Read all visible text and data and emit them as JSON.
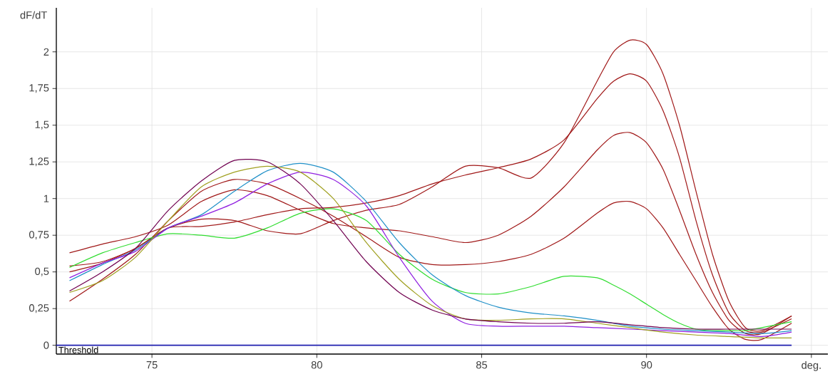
{
  "chart_data": {
    "type": "line",
    "xlabel": "deg.",
    "ylabel": "dF/dT",
    "xlim": [
      72.1,
      95.5
    ],
    "ylim": [
      -0.06,
      2.3
    ],
    "xticks": [
      75,
      80,
      85,
      90,
      {
        "value": 95,
        "label": null
      }
    ],
    "yticks": [
      0,
      {
        "value": 0.25,
        "label": "0,25"
      },
      {
        "value": 0.5,
        "label": "0,5"
      },
      {
        "value": 0.75,
        "label": "0,75"
      },
      1,
      {
        "value": 1.25,
        "label": "1,25"
      },
      {
        "value": 1.5,
        "label": "1,5"
      },
      {
        "value": 1.75,
        "label": "1,75"
      },
      2
    ],
    "grid": true,
    "legend": false,
    "marker": "none",
    "line_style": "solid",
    "ref_lines": [
      {
        "axis": "y",
        "value": 0,
        "label": "Threshold",
        "color": "#2020b0"
      }
    ],
    "series": [
      {
        "color": "#a01818",
        "x": [
          72.5,
          73.5,
          74.5,
          75.5,
          76.5,
          77.5,
          78.5,
          79.5,
          80.5,
          81.5,
          82.5,
          83.5,
          84.5,
          85.5,
          86.5,
          87.5,
          88.5,
          89,
          89.5,
          90,
          90.5,
          91,
          91.5,
          92,
          92.5,
          93,
          93.5,
          94.4
        ],
        "values": [
          0.5,
          0.56,
          0.66,
          0.8,
          0.86,
          0.85,
          0.78,
          0.76,
          0.85,
          0.92,
          0.96,
          1.08,
          1.22,
          1.21,
          1.14,
          1.38,
          1.8,
          2.0,
          2.08,
          2.05,
          1.85,
          1.5,
          1.05,
          0.62,
          0.3,
          0.12,
          0.1,
          0.2
        ]
      },
      {
        "color": "#a01818",
        "x": [
          72.5,
          73.5,
          74.5,
          75.5,
          76.5,
          77.5,
          78.5,
          79.5,
          80.5,
          81.5,
          82.5,
          83.5,
          84.5,
          85.5,
          86.5,
          87.5,
          88.5,
          89,
          89.5,
          90,
          90.5,
          91,
          91.5,
          92,
          92.5,
          93,
          93.5,
          94.4
        ],
        "values": [
          0.54,
          0.57,
          0.66,
          0.8,
          0.81,
          0.84,
          0.89,
          0.93,
          0.94,
          0.97,
          1.02,
          1.1,
          1.16,
          1.21,
          1.27,
          1.4,
          1.68,
          1.8,
          1.85,
          1.8,
          1.6,
          1.28,
          0.85,
          0.48,
          0.22,
          0.1,
          0.09,
          0.18
        ]
      },
      {
        "color": "#a01818",
        "x": [
          72.5,
          73.5,
          74.5,
          75.5,
          76.5,
          77.5,
          78.5,
          79.5,
          80.5,
          81.5,
          82.5,
          83.5,
          84.5,
          85.5,
          86.5,
          87.5,
          88.5,
          89,
          89.5,
          90,
          90.5,
          91,
          91.5,
          92,
          92.5,
          93,
          93.5,
          94.4
        ],
        "values": [
          0.63,
          0.69,
          0.74,
          0.82,
          0.98,
          1.06,
          1.02,
          0.92,
          0.83,
          0.8,
          0.78,
          0.74,
          0.7,
          0.75,
          0.88,
          1.08,
          1.33,
          1.43,
          1.45,
          1.38,
          1.2,
          0.92,
          0.62,
          0.36,
          0.17,
          0.08,
          0.08,
          0.2
        ]
      },
      {
        "color": "#a01818",
        "x": [
          72.5,
          73.5,
          74.5,
          75.5,
          76.5,
          77.5,
          78.5,
          79.5,
          80.5,
          81.5,
          82.5,
          83.5,
          84.5,
          85.5,
          86.5,
          87.5,
          88.5,
          89,
          89.5,
          90,
          90.5,
          91,
          91.5,
          92,
          92.5,
          93,
          93.5,
          94.4
        ],
        "values": [
          0.3,
          0.45,
          0.62,
          0.85,
          1.05,
          1.13,
          1.1,
          1.0,
          0.88,
          0.74,
          0.6,
          0.55,
          0.55,
          0.57,
          0.62,
          0.73,
          0.9,
          0.97,
          0.98,
          0.93,
          0.8,
          0.62,
          0.44,
          0.26,
          0.11,
          0.04,
          0.04,
          0.15
        ]
      },
      {
        "color": "#30dd30",
        "x": [
          72.5,
          73.5,
          74.5,
          75.5,
          76.5,
          77.5,
          78.5,
          79.5,
          80.5,
          81.5,
          82.5,
          83.5,
          84.5,
          85.5,
          86.5,
          87.5,
          88.5,
          89,
          89.5,
          90,
          90.5,
          91,
          91.5,
          92,
          92.5,
          93,
          93.5,
          94.4
        ],
        "values": [
          0.53,
          0.63,
          0.7,
          0.76,
          0.75,
          0.73,
          0.8,
          0.9,
          0.93,
          0.85,
          0.62,
          0.45,
          0.36,
          0.35,
          0.4,
          0.47,
          0.46,
          0.41,
          0.35,
          0.28,
          0.21,
          0.15,
          0.11,
          0.1,
          0.1,
          0.1,
          0.12,
          0.16
        ]
      },
      {
        "color": "#2090c8",
        "x": [
          72.5,
          73.5,
          74.5,
          75.5,
          76.5,
          77.5,
          78.5,
          79.5,
          80.5,
          81.5,
          82.5,
          83.5,
          84.5,
          85.5,
          86.5,
          87.5,
          88.5,
          89.5,
          90.5,
          91.5,
          92.5,
          93.5,
          94.4
        ],
        "values": [
          0.44,
          0.55,
          0.65,
          0.8,
          0.89,
          1.05,
          1.19,
          1.24,
          1.18,
          0.98,
          0.7,
          0.48,
          0.34,
          0.26,
          0.22,
          0.2,
          0.17,
          0.13,
          0.11,
          0.1,
          0.09,
          0.08,
          0.1
        ]
      },
      {
        "color": "#9020e0",
        "x": [
          72.5,
          73.5,
          74.5,
          75.5,
          76.5,
          77.5,
          78.5,
          79.5,
          80.5,
          81.5,
          82.5,
          83.5,
          84.5,
          85.5,
          86.5,
          87.5,
          88.5,
          89.5,
          90.5,
          91.5,
          92.5,
          93.5,
          94.4
        ],
        "values": [
          0.46,
          0.56,
          0.64,
          0.8,
          0.88,
          0.97,
          1.1,
          1.18,
          1.13,
          0.95,
          0.6,
          0.3,
          0.15,
          0.13,
          0.13,
          0.13,
          0.12,
          0.11,
          0.1,
          0.09,
          0.08,
          0.06,
          0.09
        ]
      },
      {
        "color": "#a0a020",
        "x": [
          72.5,
          73.5,
          74.5,
          75.5,
          76.5,
          77.5,
          78.5,
          79.5,
          80.5,
          81.5,
          82.5,
          83.5,
          84.5,
          85.5,
          86.5,
          87.5,
          88.5,
          89.5,
          90.5,
          91.5,
          92.5,
          93.5,
          94.4
        ],
        "values": [
          0.36,
          0.44,
          0.6,
          0.85,
          1.08,
          1.18,
          1.22,
          1.18,
          1.0,
          0.7,
          0.45,
          0.27,
          0.18,
          0.17,
          0.18,
          0.18,
          0.15,
          0.12,
          0.09,
          0.07,
          0.06,
          0.05,
          0.05
        ]
      },
      {
        "color": "#700050",
        "x": [
          72.5,
          73.5,
          74.5,
          75.5,
          76.5,
          77.5,
          78.5,
          79.5,
          80.5,
          81.5,
          82.5,
          83.5,
          84.5,
          85.5,
          86.5,
          87.5,
          88.5,
          89.5,
          90.5,
          91.5,
          92.5,
          93.5,
          94.4
        ],
        "values": [
          0.37,
          0.5,
          0.66,
          0.92,
          1.12,
          1.26,
          1.25,
          1.1,
          0.85,
          0.57,
          0.36,
          0.24,
          0.18,
          0.16,
          0.15,
          0.15,
          0.16,
          0.14,
          0.12,
          0.11,
          0.11,
          0.11,
          0.11
        ]
      }
    ]
  }
}
